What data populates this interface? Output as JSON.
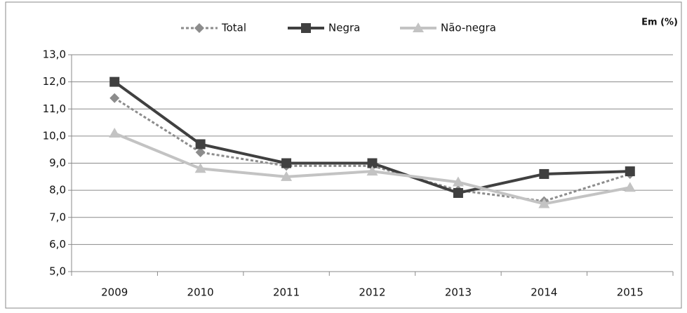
{
  "chart_data": {
    "type": "line",
    "annotation": "Em (%)",
    "categories": [
      "2009",
      "2010",
      "2011",
      "2012",
      "2013",
      "2014",
      "2015"
    ],
    "series": [
      {
        "name": "Total",
        "color": "#8c8c8c",
        "marker": "diamond",
        "dash": true,
        "values": [
          11.4,
          9.4,
          8.9,
          8.9,
          8.0,
          7.6,
          8.6
        ]
      },
      {
        "name": "Negra",
        "color": "#404040",
        "marker": "square",
        "dash": false,
        "values": [
          12.0,
          9.7,
          9.0,
          9.0,
          7.9,
          8.6,
          8.7
        ]
      },
      {
        "name": "Não-negra",
        "color": "#c3c3c3",
        "marker": "triangle",
        "dash": false,
        "values": [
          10.1,
          8.8,
          8.5,
          8.7,
          8.3,
          7.5,
          8.1
        ]
      }
    ],
    "ylim": [
      5,
      13
    ],
    "yticks": [
      {
        "value": 5,
        "label": "5,0"
      },
      {
        "value": 6,
        "label": "6,0"
      },
      {
        "value": 7,
        "label": "7,0"
      },
      {
        "value": 8,
        "label": "8,0"
      },
      {
        "value": 9,
        "label": "9,0"
      },
      {
        "value": 10,
        "label": "10,0"
      },
      {
        "value": 11,
        "label": "11,0"
      },
      {
        "value": 12,
        "label": "12,0"
      },
      {
        "value": 13,
        "label": "13,0"
      }
    ],
    "grid": true,
    "legend": "top"
  }
}
